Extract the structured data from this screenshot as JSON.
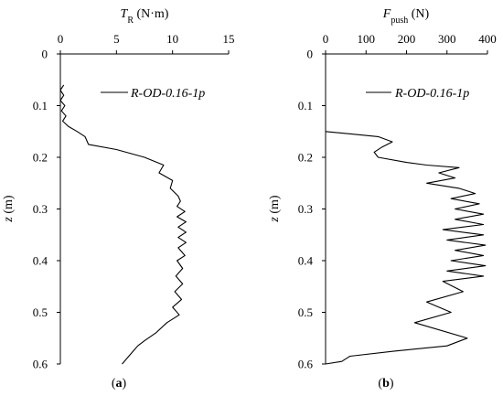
{
  "chart_data": [
    {
      "type": "line",
      "panel_label_prefix": "(",
      "panel_label_letter": "a",
      "panel_label_suffix": ")",
      "x_title_symbol": "T",
      "x_title_sub": "R",
      "x_title_unit": " (N·m)",
      "y_title_symbol": "z",
      "y_title_unit": " (m)",
      "xlim": [
        0,
        15
      ],
      "ylim": [
        0,
        0.6
      ],
      "x_ticks": [
        0,
        5,
        10,
        15
      ],
      "y_ticks": [
        "0",
        "0.1",
        "0.2",
        "0.3",
        "0.4",
        "0.5",
        "0.6"
      ],
      "y_reversed": true,
      "x_axis_position": "top",
      "legend": {
        "label": "R-OD-0.16-1p",
        "position": "top-right"
      },
      "series": [
        {
          "name": "R-OD-0.16-1p",
          "x": [
            0.3,
            0.0,
            0.3,
            0.0,
            0.4,
            0.1,
            0.5,
            0.2,
            0.7,
            1.5,
            2.2,
            2.5,
            5.0,
            7.5,
            9.2,
            8.8,
            10.0,
            9.8,
            10.5,
            10.7,
            10.4,
            11.1,
            10.4,
            11.2,
            10.5,
            11.2,
            10.5,
            11.2,
            10.5,
            11.1,
            10.4,
            10.9,
            10.3,
            10.9,
            10.2,
            10.8,
            10.0,
            10.6,
            9.5,
            8.5,
            7.5,
            6.9,
            6.5,
            5.5
          ],
          "y": [
            0.06,
            0.07,
            0.08,
            0.09,
            0.1,
            0.11,
            0.12,
            0.13,
            0.14,
            0.15,
            0.16,
            0.175,
            0.185,
            0.2,
            0.215,
            0.23,
            0.245,
            0.26,
            0.275,
            0.285,
            0.295,
            0.305,
            0.315,
            0.325,
            0.335,
            0.345,
            0.355,
            0.365,
            0.375,
            0.39,
            0.4,
            0.415,
            0.43,
            0.445,
            0.46,
            0.475,
            0.49,
            0.505,
            0.52,
            0.54,
            0.555,
            0.565,
            0.575,
            0.6
          ]
        }
      ]
    },
    {
      "type": "line",
      "panel_label_prefix": "(",
      "panel_label_letter": "b",
      "panel_label_suffix": ")",
      "x_title_symbol": "F",
      "x_title_sub": "push",
      "x_title_unit": " (N)",
      "y_title_symbol": "z",
      "y_title_unit": " (m)",
      "xlim": [
        0,
        400
      ],
      "ylim": [
        0,
        0.6
      ],
      "x_ticks": [
        0,
        100,
        200,
        300,
        400
      ],
      "y_ticks": [
        "0",
        "0.1",
        "0.2",
        "0.3",
        "0.4",
        "0.5",
        "0.6"
      ],
      "y_reversed": true,
      "x_axis_position": "top",
      "legend": {
        "label": "R-OD-0.16-1p",
        "position": "top-right"
      },
      "series": [
        {
          "name": "R-OD-0.16-1p",
          "x": [
            0,
            130,
            165,
            140,
            120,
            130,
            200,
            250,
            330,
            280,
            320,
            250,
            330,
            370,
            310,
            380,
            320,
            390,
            320,
            390,
            290,
            390,
            300,
            395,
            320,
            390,
            310,
            395,
            300,
            390,
            290,
            340,
            250,
            310,
            220,
            350,
            300,
            170,
            60,
            40,
            0
          ],
          "y": [
            0.15,
            0.16,
            0.17,
            0.18,
            0.19,
            0.2,
            0.21,
            0.215,
            0.22,
            0.23,
            0.24,
            0.25,
            0.26,
            0.27,
            0.28,
            0.29,
            0.3,
            0.31,
            0.32,
            0.33,
            0.34,
            0.35,
            0.36,
            0.37,
            0.38,
            0.39,
            0.4,
            0.41,
            0.42,
            0.43,
            0.44,
            0.46,
            0.48,
            0.5,
            0.52,
            0.55,
            0.565,
            0.575,
            0.585,
            0.595,
            0.6
          ]
        }
      ]
    }
  ]
}
